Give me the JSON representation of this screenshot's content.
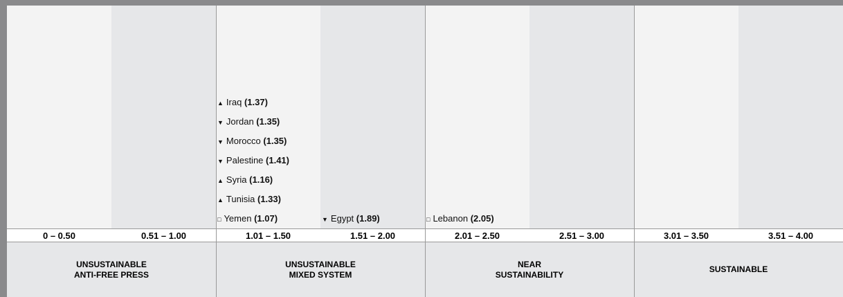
{
  "columns": [
    {
      "range": "0 – 0.50",
      "entries": []
    },
    {
      "range": "0.51 – 1.00",
      "entries": []
    },
    {
      "range": "1.01 – 1.50",
      "entries": [
        {
          "trend": "▲",
          "country": "Iraq",
          "score": "(1.37)"
        },
        {
          "trend": "▼",
          "country": "Jordan",
          "score": "(1.35)"
        },
        {
          "trend": "▼",
          "country": "Morocco",
          "score": "(1.35)"
        },
        {
          "trend": "▼",
          "country": "Palestine",
          "score": "(1.41)"
        },
        {
          "trend": "▲",
          "country": "Syria",
          "score": "(1.16)"
        },
        {
          "trend": "▲",
          "country": "Tunisia",
          "score": "(1.33)"
        },
        {
          "trend": "□",
          "country": "Yemen",
          "score": "(1.07)"
        }
      ]
    },
    {
      "range": "1.51 – 2.00",
      "entries": [
        {
          "trend": "▼",
          "country": "Egypt",
          "score": "(1.89)"
        }
      ]
    },
    {
      "range": "2.01 – 2.50",
      "entries": [
        {
          "trend": "□",
          "country": "Lebanon",
          "score": "(2.05)"
        }
      ]
    },
    {
      "range": "2.51 – 3.00",
      "entries": []
    },
    {
      "range": "3.01 – 3.50",
      "entries": []
    },
    {
      "range": "3.51 – 4.00",
      "entries": []
    }
  ],
  "groups": [
    {
      "lines": [
        "UNSUSTAINABLE",
        "ANTI-FREE PRESS"
      ]
    },
    {
      "lines": [
        "UNSUSTAINABLE",
        "MIXED SYSTEM"
      ]
    },
    {
      "lines": [
        "NEAR",
        "SUSTAINABILITY"
      ]
    },
    {
      "lines": [
        "SUSTAINABLE"
      ]
    }
  ]
}
